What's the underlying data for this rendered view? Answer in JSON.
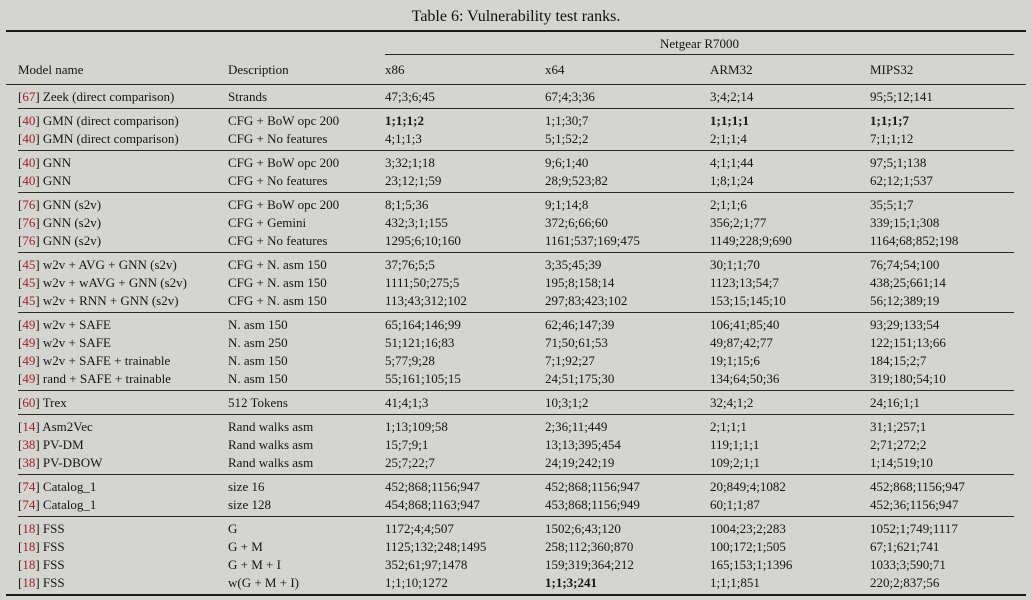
{
  "title": "Table 6: Vulnerability test ranks.",
  "table": {
    "device_group_header": "Netgear R7000",
    "columns": [
      "Model name",
      "Description",
      "x86",
      "x64",
      "ARM32",
      "MIPS32"
    ],
    "groups": [
      {
        "rows": [
          {
            "cite": "67",
            "model": "Zeek (direct comparison)",
            "desc": "Strands",
            "values": [
              "47;3;6;45",
              "67;4;3;36",
              "3;4;2;14",
              "95;5;12;141"
            ]
          }
        ]
      },
      {
        "rows": [
          {
            "cite": "40",
            "model": "GMN (direct comparison)",
            "desc": "CFG + BoW opc 200",
            "values": [
              "1;1;1;2",
              "1;1;30;7",
              "1;1;1;1",
              "1;1;1;7"
            ],
            "bold": [
              0,
              2,
              3
            ]
          },
          {
            "cite": "40",
            "model": "GMN (direct comparison)",
            "desc": "CFG + No features",
            "values": [
              "4;1;1;3",
              "5;1;52;2",
              "2;1;1;4",
              "7;1;1;12"
            ]
          }
        ]
      },
      {
        "rows": [
          {
            "cite": "40",
            "model": "GNN",
            "desc": "CFG + BoW opc 200",
            "values": [
              "3;32;1;18",
              "9;6;1;40",
              "4;1;1;44",
              "97;5;1;138"
            ]
          },
          {
            "cite": "40",
            "model": "GNN",
            "desc": "CFG + No features",
            "values": [
              "23;12;1;59",
              "28;9;523;82",
              "1;8;1;24",
              "62;12;1;537"
            ]
          }
        ]
      },
      {
        "rows": [
          {
            "cite": "76",
            "model": "GNN (s2v)",
            "desc": "CFG + BoW opc 200",
            "values": [
              "8;1;5;36",
              "9;1;14;8",
              "2;1;1;6",
              "35;5;1;7"
            ]
          },
          {
            "cite": "76",
            "model": "GNN (s2v)",
            "desc": "CFG + Gemini",
            "values": [
              "432;3;1;155",
              "372;6;66;60",
              "356;2;1;77",
              "339;15;1;308"
            ]
          },
          {
            "cite": "76",
            "model": "GNN (s2v)",
            "desc": "CFG + No features",
            "values": [
              "1295;6;10;160",
              "1161;537;169;475",
              "1149;228;9;690",
              "1164;68;852;198"
            ]
          }
        ]
      },
      {
        "rows": [
          {
            "cite": "45",
            "model": "w2v + AVG + GNN (s2v)",
            "desc": "CFG + N. asm 150",
            "values": [
              "37;76;5;5",
              "3;35;45;39",
              "30;1;1;70",
              "76;74;54;100"
            ]
          },
          {
            "cite": "45",
            "model": "w2v + wAVG + GNN (s2v)",
            "desc": "CFG + N. asm 150",
            "values": [
              "1111;50;275;5",
              "195;8;158;14",
              "1123;13;54;7",
              "438;25;661;14"
            ]
          },
          {
            "cite": "45",
            "model": "w2v + RNN + GNN (s2v)",
            "desc": "CFG + N. asm 150",
            "values": [
              "113;43;312;102",
              "297;83;423;102",
              "153;15;145;10",
              "56;12;389;19"
            ]
          }
        ]
      },
      {
        "rows": [
          {
            "cite": "49",
            "model": "w2v + SAFE",
            "desc": "N. asm 150",
            "values": [
              "65;164;146;99",
              "62;46;147;39",
              "106;41;85;40",
              "93;29;133;54"
            ]
          },
          {
            "cite": "49",
            "model": "w2v + SAFE",
            "desc": "N. asm 250",
            "values": [
              "51;121;16;83",
              "71;50;61;53",
              "49;87;42;77",
              "122;151;13;66"
            ]
          },
          {
            "cite": "49",
            "model": "w2v + SAFE + trainable",
            "desc": "N. asm 150",
            "values": [
              "5;77;9;28",
              "7;1;92;27",
              "19;1;15;6",
              "184;15;2;7"
            ]
          },
          {
            "cite": "49",
            "model": "rand + SAFE + trainable",
            "desc": "N. asm 150",
            "values": [
              "55;161;105;15",
              "24;51;175;30",
              "134;64;50;36",
              "319;180;54;10"
            ]
          }
        ]
      },
      {
        "rows": [
          {
            "cite": "60",
            "model": "Trex",
            "desc": "512 Tokens",
            "values": [
              "41;4;1;3",
              "10;3;1;2",
              "32;4;1;2",
              "24;16;1;1"
            ]
          }
        ]
      },
      {
        "rows": [
          {
            "cite": "14",
            "model": "Asm2Vec",
            "desc": "Rand walks asm",
            "values": [
              "1;13;109;58",
              "2;36;11;449",
              "2;1;1;1",
              "31;1;257;1"
            ]
          },
          {
            "cite": "38",
            "model": "PV-DM",
            "desc": "Rand walks asm",
            "values": [
              "15;7;9;1",
              "13;13;395;454",
              "119;1;1;1",
              "2;71;272;2"
            ]
          },
          {
            "cite": "38",
            "model": "PV-DBOW",
            "desc": "Rand walks asm",
            "values": [
              "25;7;22;7",
              "24;19;242;19",
              "109;2;1;1",
              "1;14;519;10"
            ]
          }
        ]
      },
      {
        "rows": [
          {
            "cite": "74",
            "model": "Catalog_1",
            "desc": "size 16",
            "values": [
              "452;868;1156;947",
              "452;868;1156;947",
              "20;849;4;1082",
              "452;868;1156;947"
            ]
          },
          {
            "cite": "74",
            "model": "Catalog_1",
            "desc": "size 128",
            "values": [
              "454;868;1163;947",
              "453;868;1156;949",
              "60;1;1;87",
              "452;36;1156;947"
            ]
          }
        ]
      },
      {
        "rows": [
          {
            "cite": "18",
            "model": "FSS",
            "desc": "G",
            "values": [
              "1172;4;4;507",
              "1502;6;43;120",
              "1004;23;2;283",
              "1052;1;749;1117"
            ]
          },
          {
            "cite": "18",
            "model": "FSS",
            "desc": "G + M",
            "values": [
              "1125;132;248;1495",
              "258;112;360;870",
              "100;172;1;505",
              "67;1;621;741"
            ]
          },
          {
            "cite": "18",
            "model": "FSS",
            "desc": "G + M + I",
            "values": [
              "352;61;97;1478",
              "159;319;364;212",
              "165;153;1;1396",
              "1033;3;590;71"
            ]
          },
          {
            "cite": "18",
            "model": "FSS",
            "desc": "w(G + M + I)",
            "values": [
              "1;1;10;1272",
              "1;1;3;241",
              "1;1;1;851",
              "220;2;837;56"
            ],
            "bold": [
              1
            ]
          }
        ]
      }
    ]
  },
  "colors": {
    "background": "#d4d4d1",
    "text": "#141414",
    "rule": "#1a1a1a",
    "citation": "#a31c26"
  }
}
